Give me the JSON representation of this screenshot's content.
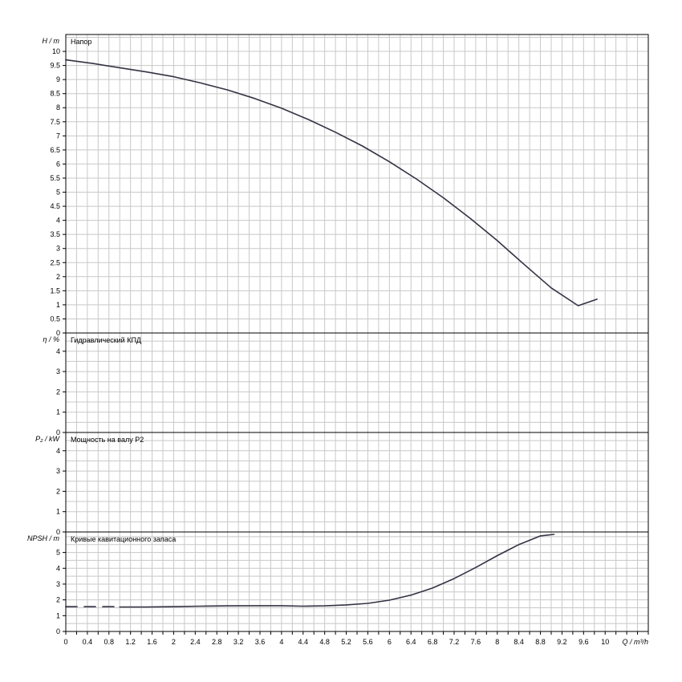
{
  "chart_data": {
    "type": "line",
    "x_axis": {
      "label": "Q / m³/h",
      "range": [
        0,
        10.8
      ],
      "major_step": 0.2,
      "tick_labels": [
        "0",
        "0.4",
        "0.8",
        "1.2",
        "1.6",
        "2",
        "2.4",
        "2.8",
        "3.2",
        "3.6",
        "4",
        "4.4",
        "4.8",
        "5.2",
        "5.6",
        "6",
        "6.4",
        "6.8",
        "7.2",
        "7.6",
        "8",
        "8.4",
        "8.8",
        "9.2",
        "9.6",
        "10"
      ],
      "tick_values": [
        0,
        0.4,
        0.8,
        1.2,
        1.6,
        2,
        2.4,
        2.8,
        3.2,
        3.6,
        4,
        4.4,
        4.8,
        5.2,
        5.6,
        6,
        6.4,
        6.8,
        7.2,
        7.6,
        8,
        8.4,
        8.8,
        9.2,
        9.6,
        10
      ]
    },
    "panels": [
      {
        "id": "head",
        "title": "Напор",
        "ylabel": "H / m",
        "ylim": [
          0,
          10.6
        ],
        "grid_step": 0.5,
        "tick_values": [
          0,
          0.5,
          1,
          1.5,
          2,
          2.5,
          3,
          3.5,
          4,
          4.5,
          5,
          5.5,
          6,
          6.5,
          7,
          7.5,
          8,
          8.5,
          9,
          9.5,
          10
        ],
        "tick_labels": [
          "0",
          "0.5",
          "1",
          "1.5",
          "2",
          "2.5",
          "3",
          "3.5",
          "4",
          "4.5",
          "5",
          "5.5",
          "6",
          "6.5",
          "7",
          "7.5",
          "8",
          "8.5",
          "9",
          "9.5",
          "10"
        ],
        "series": [
          {
            "style": "solid",
            "x": [
              0,
              0.5,
              1,
              1.5,
              2,
              2.5,
              3,
              3.5,
              4,
              4.5,
              5,
              5.5,
              6,
              6.5,
              7,
              7.5,
              8,
              8.5,
              9,
              9.5,
              9.85
            ],
            "y": [
              9.7,
              9.57,
              9.42,
              9.27,
              9.1,
              8.88,
              8.63,
              8.33,
              7.98,
              7.58,
              7.13,
              6.64,
              6.08,
              5.47,
              4.8,
              4.07,
              3.28,
              2.43,
              1.6,
              0.97,
              1.2
            ]
          }
        ]
      },
      {
        "id": "efficiency",
        "title": "Гидравлический КПД",
        "ylabel": "η / %",
        "ylim": [
          0,
          4.9
        ],
        "grid_step": 0.5,
        "tick_values": [
          0,
          1,
          2,
          3,
          4
        ],
        "tick_labels": [
          "0",
          "1",
          "2",
          "3",
          "4"
        ],
        "series": []
      },
      {
        "id": "power",
        "title": "Мощность на валу P2",
        "ylabel": "P₂ / kW",
        "ylim": [
          0,
          4.9
        ],
        "grid_step": 0.5,
        "tick_values": [
          0,
          1,
          2,
          3,
          4
        ],
        "tick_labels": [
          "0",
          "1",
          "2",
          "3",
          "4"
        ],
        "series": []
      },
      {
        "id": "npsh",
        "title": "Кривые кавитационного запаса",
        "ylabel": "NPSH / m",
        "ylim": [
          0,
          6.3
        ],
        "grid_step": 0.5,
        "tick_values": [
          0,
          1,
          2,
          3,
          4,
          5
        ],
        "tick_labels": [
          "0",
          "1",
          "2",
          "3",
          "4",
          "5"
        ],
        "series": [
          {
            "style": "dashed",
            "x": [
              0,
              1
            ],
            "y": [
              1.57,
              1.57
            ]
          },
          {
            "style": "solid",
            "x": [
              1,
              1.5,
              2,
              2.5,
              3,
              3.5,
              4,
              4.4,
              4.8,
              5.2,
              5.6,
              6,
              6.4,
              6.8,
              7.2,
              7.6,
              8,
              8.4,
              8.8,
              9.05
            ],
            "y": [
              1.55,
              1.55,
              1.57,
              1.6,
              1.62,
              1.63,
              1.63,
              1.6,
              1.62,
              1.68,
              1.78,
              1.98,
              2.3,
              2.75,
              3.35,
              4.05,
              4.8,
              5.5,
              6.05,
              6.15
            ]
          }
        ]
      }
    ],
    "grid": true,
    "colors": {
      "curve": "#333344",
      "grid": "#c8c8c8",
      "frame": "#000000"
    }
  }
}
